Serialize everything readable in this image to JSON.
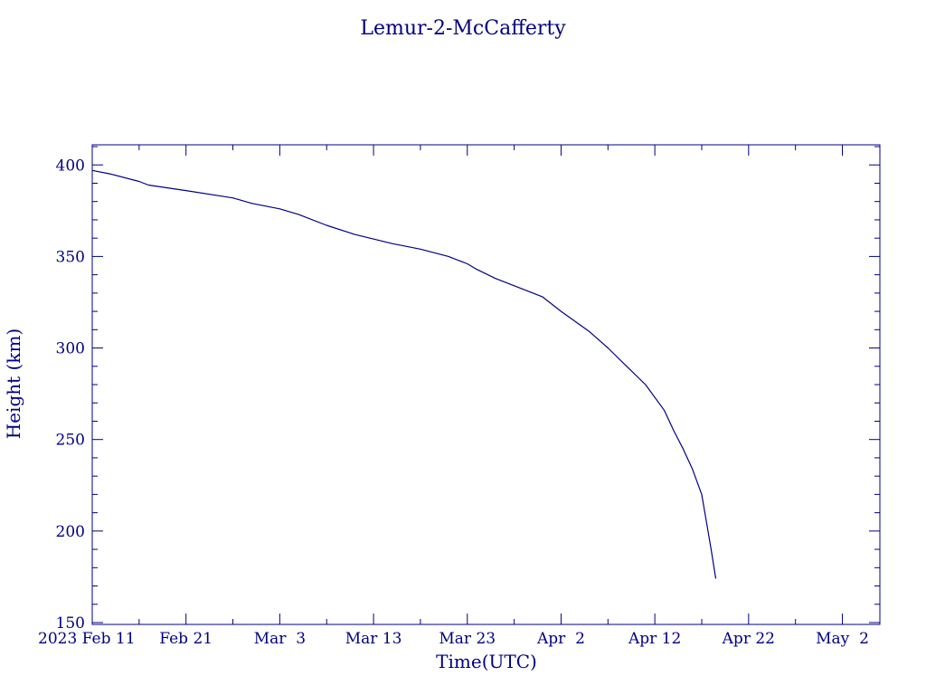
{
  "colors": {
    "ink": "#000080",
    "background": "#ffffff"
  },
  "chart_data": {
    "type": "line",
    "title": "Lemur-2-McCafferty",
    "xlabel": "Time(UTC)",
    "ylabel": "Height (km)",
    "x_is_date": true,
    "xlim": [
      "2023-02-11",
      "2023-05-06"
    ],
    "ylim": [
      149,
      411
    ],
    "grid": false,
    "legend": "none",
    "x_ticks": [
      {
        "date": "2023-02-11",
        "label": "2023 Feb 11"
      },
      {
        "date": "2023-02-21",
        "label": "Feb 21"
      },
      {
        "date": "2023-03-03",
        "label": "Mar  3"
      },
      {
        "date": "2023-03-13",
        "label": "Mar 13"
      },
      {
        "date": "2023-03-23",
        "label": "Mar 23"
      },
      {
        "date": "2023-04-02",
        "label": "Apr  2"
      },
      {
        "date": "2023-04-12",
        "label": "Apr 12"
      },
      {
        "date": "2023-04-22",
        "label": "Apr 22"
      },
      {
        "date": "2023-05-02",
        "label": "May  2"
      }
    ],
    "y_ticks": [
      {
        "value": 150,
        "label": "150"
      },
      {
        "value": 200,
        "label": "200"
      },
      {
        "value": 250,
        "label": "250"
      },
      {
        "value": 300,
        "label": "300"
      },
      {
        "value": 350,
        "label": "350"
      },
      {
        "value": 400,
        "label": "400"
      }
    ],
    "series": [
      {
        "points": [
          {
            "x": "2023-02-11",
            "y": 397
          },
          {
            "x": "2023-02-13",
            "y": 395
          },
          {
            "x": "2023-02-16",
            "y": 391
          },
          {
            "x": "2023-02-17",
            "y": 389
          },
          {
            "x": "2023-02-21",
            "y": 386
          },
          {
            "x": "2023-02-26",
            "y": 382
          },
          {
            "x": "2023-02-28",
            "y": 379
          },
          {
            "x": "2023-03-03",
            "y": 376
          },
          {
            "x": "2023-03-05",
            "y": 373
          },
          {
            "x": "2023-03-08",
            "y": 367
          },
          {
            "x": "2023-03-11",
            "y": 362
          },
          {
            "x": "2023-03-15",
            "y": 357
          },
          {
            "x": "2023-03-18",
            "y": 354
          },
          {
            "x": "2023-03-21",
            "y": 350
          },
          {
            "x": "2023-03-23",
            "y": 346
          },
          {
            "x": "2023-03-24",
            "y": 343
          },
          {
            "x": "2023-03-26",
            "y": 338
          },
          {
            "x": "2023-03-31",
            "y": 328
          },
          {
            "x": "2023-04-02",
            "y": 320
          },
          {
            "x": "2023-04-05",
            "y": 309
          },
          {
            "x": "2023-04-07",
            "y": 300
          },
          {
            "x": "2023-04-09",
            "y": 290
          },
          {
            "x": "2023-04-11",
            "y": 280
          },
          {
            "x": "2023-04-13",
            "y": 266
          },
          {
            "x": "2023-04-14",
            "y": 255
          },
          {
            "x": "2023-04-15",
            "y": 245
          },
          {
            "x": "2023-04-16",
            "y": 234
          },
          {
            "x": "2023-04-17",
            "y": 220
          },
          {
            "x": "2023-04-17T12:00",
            "y": 205
          },
          {
            "x": "2023-04-18",
            "y": 190
          },
          {
            "x": "2023-04-18T12:00",
            "y": 174
          }
        ]
      }
    ]
  }
}
